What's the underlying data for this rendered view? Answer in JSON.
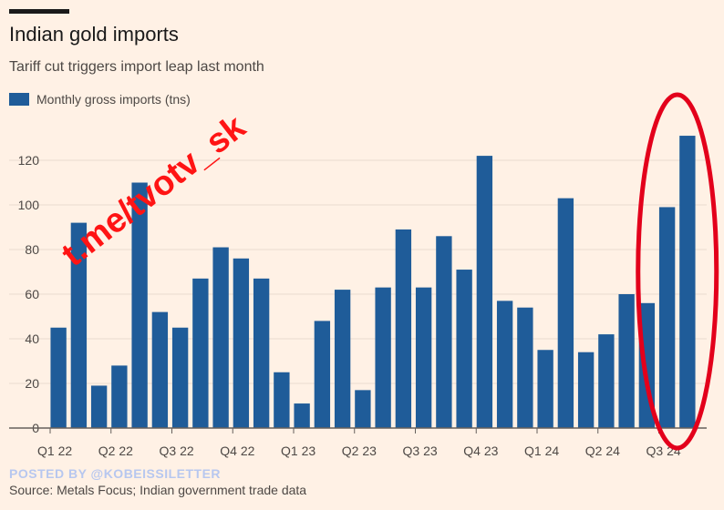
{
  "title": "Indian gold imports",
  "subtitle": "Tariff cut triggers import leap last month",
  "watermark": "t.me/tvotv_sk",
  "posted_by": "POSTED BY @KOBEISSILETTER",
  "source": "Source: Metals Focus; Indian government trade data",
  "colors": {
    "bar": "#1F5C99",
    "background": "#FFF1E5",
    "annotation": "#E3001B",
    "watermark": "#FF1414",
    "text": "#1A1A1A",
    "muted_text": "#4D4845",
    "gridline": "#E9DCD0"
  },
  "chart_data": {
    "type": "bar",
    "title": "Indian gold imports",
    "subtitle": "Tariff cut triggers import leap last month",
    "series": [
      {
        "name": "Monthly gross imports (tns)",
        "values": [
          45,
          92,
          19,
          28,
          110,
          52,
          45,
          67,
          81,
          76,
          67,
          25,
          11,
          48,
          62,
          17,
          63,
          89,
          63,
          86,
          71,
          122,
          57,
          54,
          35,
          103,
          34,
          42,
          60,
          56,
          99,
          131
        ]
      }
    ],
    "x_tick_labels": [
      "Q1 22",
      "Q2 22",
      "Q3 22",
      "Q4 22",
      "Q1 23",
      "Q2 23",
      "Q3 23",
      "Q4 23",
      "Q1 24",
      "Q2 24",
      "Q3 24"
    ],
    "y_ticks": [
      0,
      20,
      40,
      60,
      80,
      100,
      120
    ],
    "ylim": [
      0,
      140
    ],
    "grid": true,
    "legend": "top-left",
    "annotation": "ellipse around the final two bars"
  }
}
